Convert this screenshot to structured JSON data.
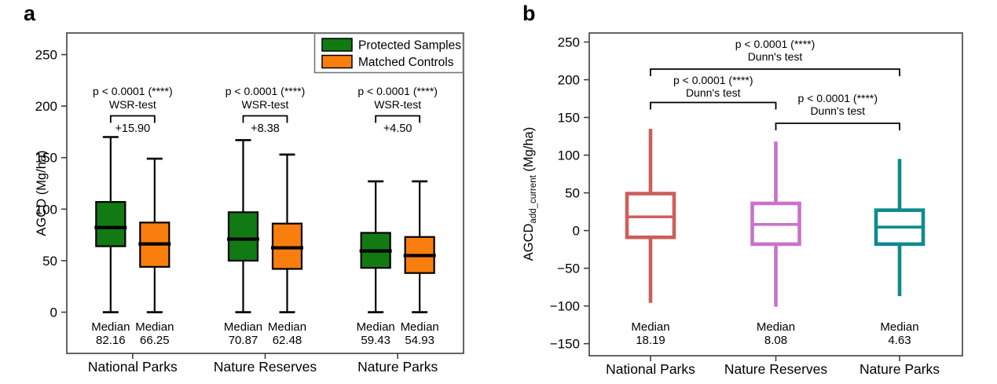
{
  "chart_data": [
    {
      "type": "box",
      "panel_label": "a",
      "ylabel": "AGCD (Mg/ha)",
      "ylim": [
        -40,
        271
      ],
      "yticks": [
        0,
        50,
        100,
        150,
        200,
        250
      ],
      "categories": [
        "National Parks",
        "Nature Reserves",
        "Nature Parks"
      ],
      "median_word": "Median",
      "legend_position": "top-right",
      "legend": [
        {
          "label": "Protected Samples",
          "color": "#127a12"
        },
        {
          "label": "Matched Controls",
          "color": "#fa7e0e"
        }
      ],
      "annotations": [
        {
          "p_line": "p < 0.0001 (****)",
          "test_line": "WSR-test",
          "difference": "+15.90"
        },
        {
          "p_line": "p < 0.0001 (****)",
          "test_line": "WSR-test",
          "difference": "+8.38"
        },
        {
          "p_line": "p < 0.0001 (****)",
          "test_line": "WSR-test",
          "difference": "+4.50"
        }
      ],
      "series": [
        {
          "name": "Protected Samples",
          "color": "#127a12",
          "boxes": [
            {
              "whisker_low": 0,
              "q1": 64,
              "median": 82.16,
              "q3": 107,
              "whisker_high": 170,
              "median_label": "82.16"
            },
            {
              "whisker_low": 0,
              "q1": 50,
              "median": 70.87,
              "q3": 97,
              "whisker_high": 167,
              "median_label": "70.87"
            },
            {
              "whisker_low": 0,
              "q1": 43,
              "median": 59.43,
              "q3": 77,
              "whisker_high": 127,
              "median_label": "59.43"
            }
          ]
        },
        {
          "name": "Matched Controls",
          "color": "#fa7e0e",
          "boxes": [
            {
              "whisker_low": 0,
              "q1": 44,
              "median": 66.25,
              "q3": 87,
              "whisker_high": 149,
              "median_label": "66.25"
            },
            {
              "whisker_low": 0,
              "q1": 42,
              "median": 62.48,
              "q3": 86,
              "whisker_high": 153,
              "median_label": "62.48"
            },
            {
              "whisker_low": 0,
              "q1": 38,
              "median": 54.93,
              "q3": 73,
              "whisker_high": 127,
              "median_label": "54.93"
            }
          ]
        }
      ]
    },
    {
      "type": "box",
      "panel_label": "b",
      "ylabel_base": "AGCD",
      "ylabel_subscript": "add_current",
      "ylabel_unit": " (Mg/ha)",
      "ylim": [
        -166,
        262
      ],
      "yticks": [
        -150,
        -100,
        -50,
        0,
        50,
        100,
        150,
        200,
        250
      ],
      "categories": [
        "National Parks",
        "Nature Reserves",
        "Nature Parks"
      ],
      "median_word": "Median",
      "boxes": [
        {
          "name": "National Parks",
          "color": "#cb5f5b",
          "whisker_low": -96,
          "q1": -9,
          "median": 18.19,
          "q3": 49,
          "whisker_high": 135,
          "median_label": "18.19"
        },
        {
          "name": "Nature Reserves",
          "color": "#c973c9",
          "whisker_low": -101,
          "q1": -18,
          "median": 8.08,
          "q3": 36,
          "whisker_high": 118,
          "median_label": "8.08"
        },
        {
          "name": "Nature Parks",
          "color": "#0f8a8e",
          "whisker_low": -87,
          "q1": -18,
          "median": 4.63,
          "q3": 27,
          "whisker_high": 95,
          "median_label": "4.63"
        }
      ],
      "comparisons": [
        {
          "pair": [
            0,
            2
          ],
          "p_line": "p < 0.0001 (****)",
          "test_line": "Dunn's test"
        },
        {
          "pair": [
            0,
            1
          ],
          "p_line": "p < 0.0001 (****)",
          "test_line": "Dunn's test"
        },
        {
          "pair": [
            1,
            2
          ],
          "p_line": "p < 0.0001 (****)",
          "test_line": "Dunn's test"
        }
      ]
    }
  ]
}
